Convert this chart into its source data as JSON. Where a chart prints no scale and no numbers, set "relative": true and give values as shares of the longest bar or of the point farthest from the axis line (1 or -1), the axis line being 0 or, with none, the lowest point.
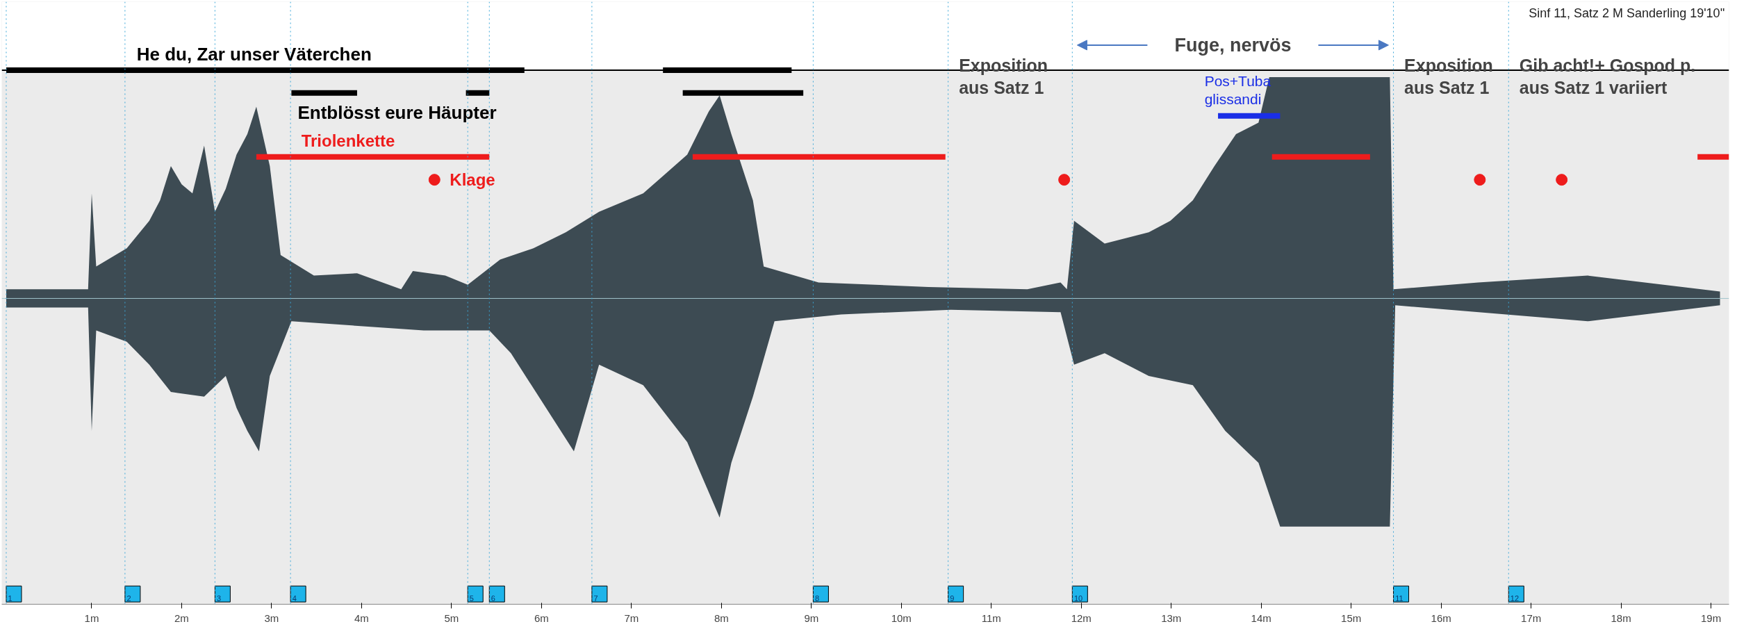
{
  "chart_data": {
    "type": "area",
    "relative": true,
    "title": "Sinf 11, Satz 2 M Sanderling 19'10''",
    "xlim": [
      0,
      19.2
    ],
    "xticks": [
      {
        "value": 1,
        "label": "1m"
      },
      {
        "value": 2,
        "label": "2m"
      },
      {
        "value": 3,
        "label": "3m"
      },
      {
        "value": 4,
        "label": "4m"
      },
      {
        "value": 5,
        "label": "5m"
      },
      {
        "value": 6,
        "label": "6m"
      },
      {
        "value": 7,
        "label": "7m"
      },
      {
        "value": 8,
        "label": "8m"
      },
      {
        "value": 9,
        "label": "9m"
      },
      {
        "value": 10,
        "label": "10m"
      },
      {
        "value": 11,
        "label": "11m"
      },
      {
        "value": 12,
        "label": "12m"
      },
      {
        "value": 13,
        "label": "13m"
      },
      {
        "value": 14,
        "label": "14m"
      },
      {
        "value": 15,
        "label": "15m"
      },
      {
        "value": 16,
        "label": "16m"
      },
      {
        "value": 17,
        "label": "17m"
      },
      {
        "value": 18,
        "label": "18m"
      },
      {
        "value": 19,
        "label": "19m"
      }
    ],
    "series": [
      {
        "color": "#3d4b53",
        "x": [
          0.05,
          0.96,
          1.0,
          1.05,
          1.39,
          1.64,
          1.76,
          1.88,
          2.0,
          2.12,
          2.25,
          2.37,
          2.49,
          2.61,
          2.73,
          2.83,
          2.98,
          3.1,
          3.47,
          3.95,
          4.44,
          4.57,
          4.93,
          5.18,
          5.54,
          5.91,
          6.27,
          6.64,
          7.13,
          7.62,
          7.86,
          7.98,
          8.11,
          8.35,
          8.47,
          9.08,
          10.3,
          11.4,
          11.77,
          11.84,
          11.92,
          12.26,
          12.75,
          12.99,
          13.24,
          13.48,
          13.72,
          13.97,
          14.09,
          15.43,
          15.47,
          16.41,
          17.63,
          19.1
        ],
        "values": [
          0.04,
          0.04,
          0.46,
          0.14,
          0.22,
          0.34,
          0.43,
          0.58,
          0.5,
          0.46,
          0.67,
          0.38,
          0.48,
          0.63,
          0.72,
          0.84,
          0.58,
          0.19,
          0.1,
          0.11,
          0.04,
          0.12,
          0.1,
          0.06,
          0.17,
          0.22,
          0.29,
          0.38,
          0.46,
          0.63,
          0.82,
          0.89,
          0.72,
          0.43,
          0.14,
          0.07,
          0.05,
          0.04,
          0.07,
          0.04,
          0.34,
          0.24,
          0.29,
          0.34,
          0.43,
          0.58,
          0.72,
          0.77,
          0.97,
          0.97,
          0.04,
          0.07,
          0.1,
          0.03
        ]
      },
      {
        "color": "#3d4b53",
        "x": [
          0.05,
          0.96,
          1.0,
          1.05,
          1.39,
          1.64,
          1.88,
          2.25,
          2.49,
          2.61,
          2.73,
          2.86,
          2.98,
          3.22,
          4.69,
          5.42,
          5.66,
          6.36,
          6.64,
          7.13,
          7.62,
          7.98,
          8.11,
          8.35,
          8.59,
          9.33,
          10.55,
          11.77,
          11.92,
          12.26,
          12.75,
          13.24,
          13.6,
          13.97,
          14.21,
          15.43,
          15.49,
          17.63,
          19.1
        ],
        "values": [
          -0.04,
          -0.04,
          -0.58,
          -0.14,
          -0.19,
          -0.29,
          -0.41,
          -0.43,
          -0.34,
          -0.48,
          -0.58,
          -0.67,
          -0.34,
          -0.1,
          -0.14,
          -0.14,
          -0.24,
          -0.67,
          -0.29,
          -0.38,
          -0.63,
          -0.96,
          -0.72,
          -0.43,
          -0.1,
          -0.07,
          -0.05,
          -0.06,
          -0.29,
          -0.24,
          -0.34,
          -0.38,
          -0.58,
          -0.72,
          -1,
          -1,
          -0.03,
          -0.1,
          -0.03
        ]
      },
      {
        "type": "line",
        "name": "He du, Zar unser Väterchen",
        "color": "#000000",
        "x": [
          0.05,
          5.81,
          6.5,
          7.35,
          8.78
        ],
        "values": [
          1,
          1,
          null,
          1,
          1
        ]
      },
      {
        "type": "line",
        "name": "Entblösst eure Häupter",
        "color": "#000000",
        "x": [
          3.22,
          3.95,
          4.5,
          5.16,
          5.42,
          6.5,
          7.57,
          8.91
        ],
        "values": [
          0.9,
          0.9,
          null,
          0.9,
          0.9,
          null,
          0.9,
          0.9
        ]
      },
      {
        "type": "line",
        "name": "Triolenkette",
        "color": "#ee1c1c",
        "x": [
          2.83,
          5.42,
          6.5,
          7.68,
          10.49,
          12.0,
          14.12,
          15.21,
          17.0,
          18.85,
          19.2
        ],
        "values": [
          0.62,
          0.62,
          null,
          0.62,
          0.62,
          null,
          0.62,
          0.62,
          null,
          0.62,
          0.62
        ]
      },
      {
        "type": "line",
        "name": "Pos+Tuba\nglissandi",
        "color": "#1a2ee6",
        "x": [
          13.52,
          14.21
        ],
        "values": [
          0.8,
          0.8
        ]
      },
      {
        "type": "scatter",
        "name": "Klage",
        "color": "#ee1c1c",
        "x": [
          4.81,
          11.81,
          16.43,
          17.34
        ],
        "values": [
          0.52,
          0.52,
          0.52,
          0.52
        ]
      }
    ],
    "ref_lines": [
      {
        "axis": "y",
        "value": 0,
        "label": null,
        "color": "#9fc3cc",
        "line_style": "solid"
      },
      {
        "axis": "x",
        "value": 0.05,
        "label": null,
        "color": "#3ba7d8",
        "line_style": "dotted"
      },
      {
        "axis": "x",
        "value": 1.37,
        "label": null,
        "color": "#3ba7d8",
        "line_style": "dotted"
      },
      {
        "axis": "x",
        "value": 2.37,
        "label": null,
        "color": "#3ba7d8",
        "line_style": "dotted"
      },
      {
        "axis": "x",
        "value": 3.21,
        "label": null,
        "color": "#3ba7d8",
        "line_style": "dotted"
      },
      {
        "axis": "x",
        "value": 5.18,
        "label": null,
        "color": "#3ba7d8",
        "line_style": "dotted"
      },
      {
        "axis": "x",
        "value": 5.42,
        "label": null,
        "color": "#3ba7d8",
        "line_style": "dotted"
      },
      {
        "axis": "x",
        "value": 6.56,
        "label": null,
        "color": "#3ba7d8",
        "line_style": "dotted"
      },
      {
        "axis": "x",
        "value": 9.02,
        "label": null,
        "color": "#3ba7d8",
        "line_style": "dotted"
      },
      {
        "axis": "x",
        "value": 10.52,
        "label": null,
        "color": "#3ba7d8",
        "line_style": "dotted"
      },
      {
        "axis": "x",
        "value": 11.9,
        "label": null,
        "color": "#3ba7d8",
        "line_style": "dotted"
      },
      {
        "axis": "x",
        "value": 15.47,
        "label": null,
        "color": "#3ba7d8",
        "line_style": "dotted"
      },
      {
        "axis": "x",
        "value": 16.75,
        "label": null,
        "color": "#3ba7d8",
        "line_style": "dotted"
      }
    ],
    "annotations": [
      {
        "text": "1",
        "x": 0.05,
        "y": -1.3
      },
      {
        "text": "2",
        "x": 1.37,
        "y": -1.3
      },
      {
        "text": "3",
        "x": 2.37,
        "y": -1.3
      },
      {
        "text": "4",
        "x": 3.21,
        "y": -1.3
      },
      {
        "text": "5",
        "x": 5.18,
        "y": -1.3
      },
      {
        "text": "6",
        "x": 5.42,
        "y": -1.3
      },
      {
        "text": "7",
        "x": 6.56,
        "y": -1.3
      },
      {
        "text": "8",
        "x": 9.02,
        "y": -1.3
      },
      {
        "text": "9",
        "x": 10.52,
        "y": -1.3
      },
      {
        "text": "10",
        "x": 11.9,
        "y": -1.3
      },
      {
        "text": "11",
        "x": 15.47,
        "y": -1.3
      },
      {
        "text": "12",
        "x": 16.75,
        "y": -1.3
      },
      {
        "text": "Exposition\naus Satz 1",
        "x": 10.52,
        "y": 1
      },
      "Fuge, nervös",
      {
        "text": "Exposition\naus Satz 1",
        "x": 15.47,
        "y": 1
      },
      {
        "text": "Gib acht!+ Gospod p.\naus Satz 1 variiert",
        "x": 16.75,
        "y": 1
      }
    ]
  }
}
